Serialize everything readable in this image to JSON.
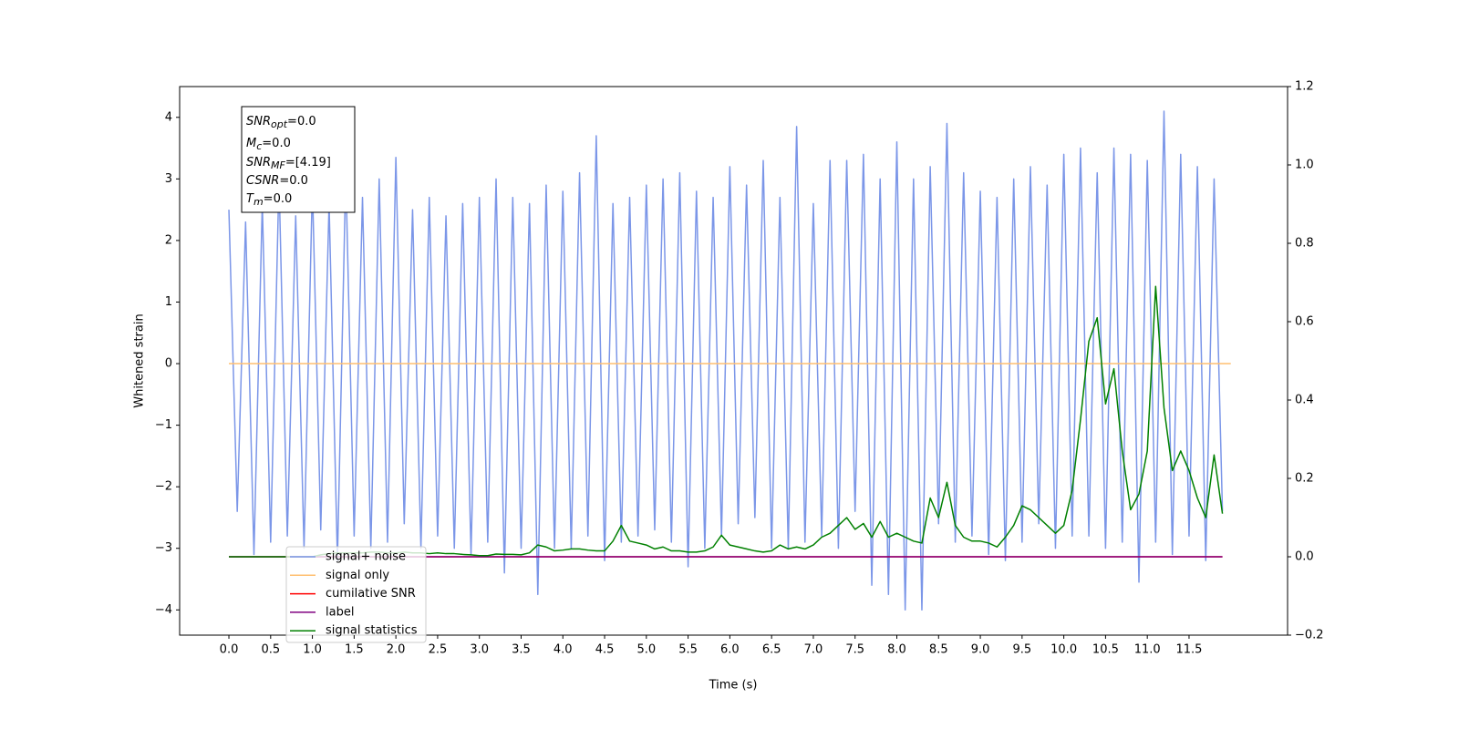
{
  "chart_data": {
    "type": "line",
    "xlabel": "Time (s)",
    "ylabel": "Whitened strain",
    "xlim": [
      -0.59,
      12.68
    ],
    "ylim": [
      -4.41,
      4.5
    ],
    "y2lim": [
      -0.2,
      1.2
    ],
    "xticks": [
      {
        "value": 0,
        "label": "0.0"
      },
      {
        "value": 0.5,
        "label": "0.5"
      },
      {
        "value": 1,
        "label": "1.0"
      },
      {
        "value": 1.5,
        "label": "1.5"
      },
      {
        "value": 2,
        "label": "2.0"
      },
      {
        "value": 2.5,
        "label": "2.5"
      },
      {
        "value": 3,
        "label": "3.0"
      },
      {
        "value": 3.5,
        "label": "3.5"
      },
      {
        "value": 4,
        "label": "4.0"
      },
      {
        "value": 4.5,
        "label": "4.5"
      },
      {
        "value": 5,
        "label": "5.0"
      },
      {
        "value": 5.5,
        "label": "5.5"
      },
      {
        "value": 6,
        "label": "6.0"
      },
      {
        "value": 6.5,
        "label": "6.5"
      },
      {
        "value": 7,
        "label": "7.0"
      },
      {
        "value": 7.5,
        "label": "7.5"
      },
      {
        "value": 8,
        "label": "8.0"
      },
      {
        "value": 8.5,
        "label": "8.5"
      },
      {
        "value": 9,
        "label": "9.0"
      },
      {
        "value": 9.5,
        "label": "9.5"
      },
      {
        "value": 10,
        "label": "10.0"
      },
      {
        "value": 10.5,
        "label": "10.5"
      },
      {
        "value": 11,
        "label": "11.0"
      },
      {
        "value": 11.5,
        "label": "11.5"
      }
    ],
    "yticks": [
      {
        "value": -4,
        "label": "−4"
      },
      {
        "value": -3,
        "label": "−3"
      },
      {
        "value": -2,
        "label": "−2"
      },
      {
        "value": -1,
        "label": "−1"
      },
      0,
      1,
      2,
      3,
      4
    ],
    "y2ticks": [
      {
        "value": -0.2,
        "label": "−0.2"
      },
      {
        "value": 0,
        "label": "0.0"
      },
      {
        "value": 0.2,
        "label": "0.2"
      },
      {
        "value": 0.4,
        "label": "0.4"
      },
      {
        "value": 0.6,
        "label": "0.6"
      },
      {
        "value": 0.8,
        "label": "0.8"
      },
      {
        "value": 1,
        "label": "1.0"
      },
      {
        "value": 1.2,
        "label": "1.2"
      }
    ],
    "legend": "lower left",
    "x": [
      0,
      0.1,
      0.2,
      0.3,
      0.4,
      0.5,
      0.6,
      0.7,
      0.8,
      0.9,
      1,
      1.1,
      1.2,
      1.3,
      1.4,
      1.5,
      1.6,
      1.7,
      1.8,
      1.9,
      2,
      2.1,
      2.2,
      2.3,
      2.4,
      2.5,
      2.6,
      2.7,
      2.8,
      2.9,
      3,
      3.1,
      3.2,
      3.3,
      3.4,
      3.5,
      3.6,
      3.7,
      3.8,
      3.9,
      4,
      4.1,
      4.2,
      4.3,
      4.4,
      4.5,
      4.6,
      4.7,
      4.8,
      4.9,
      5,
      5.1,
      5.2,
      5.3,
      5.4,
      5.5,
      5.6,
      5.7,
      5.8,
      5.9,
      6,
      6.1,
      6.2,
      6.3,
      6.4,
      6.5,
      6.6,
      6.7,
      6.8,
      6.9,
      7,
      7.1,
      7.2,
      7.3,
      7.4,
      7.5,
      7.6,
      7.7,
      7.8,
      7.9,
      8,
      8.1,
      8.2,
      8.3,
      8.4,
      8.5,
      8.6,
      8.7,
      8.8,
      8.9,
      9,
      9.1,
      9.2,
      9.3,
      9.4,
      9.5,
      9.6,
      9.7,
      9.8,
      9.9,
      10,
      10.1,
      10.2,
      10.3,
      10.4,
      10.5,
      10.6,
      10.7,
      10.8,
      10.9,
      11,
      11.1,
      11.2,
      11.3,
      11.4,
      11.5,
      11.6,
      11.7,
      11.8,
      11.9
    ],
    "series": [
      {
        "name": "signal+ noise",
        "color": "#7b96e8",
        "values": [
          2.5,
          -2.4,
          2.3,
          -3.1,
          2.6,
          -2.9,
          3.0,
          -2.8,
          2.4,
          -3.0,
          2.9,
          -2.7,
          2.6,
          -3.2,
          3.1,
          -2.8,
          2.7,
          -3.0,
          3.0,
          -2.9,
          3.35,
          -2.6,
          2.5,
          -3.0,
          2.7,
          -2.8,
          2.4,
          -3.0,
          2.6,
          -3.1,
          2.7,
          -2.9,
          3.0,
          -3.4,
          2.7,
          -3.0,
          2.6,
          -3.75,
          2.9,
          -3.0,
          2.8,
          -3.0,
          3.1,
          -2.8,
          3.7,
          -3.2,
          2.6,
          -2.9,
          2.7,
          -2.8,
          2.9,
          -2.7,
          3.0,
          -2.9,
          3.1,
          -3.3,
          2.8,
          -3.0,
          2.7,
          -2.8,
          3.2,
          -2.6,
          2.9,
          -2.5,
          3.3,
          -3.0,
          2.7,
          -3.0,
          3.85,
          -2.9,
          2.6,
          -2.8,
          3.3,
          -3.0,
          3.3,
          -2.4,
          3.4,
          -3.6,
          3.0,
          -3.75,
          3.6,
          -4.0,
          3.0,
          -4.0,
          3.2,
          -2.6,
          3.9,
          -2.9,
          3.1,
          -2.8,
          2.8,
          -3.1,
          2.7,
          -3.2,
          3.0,
          -2.9,
          3.2,
          -2.6,
          2.9,
          -3.0,
          3.4,
          -2.8,
          3.5,
          -2.8,
          3.1,
          -3.0,
          3.5,
          -2.9,
          3.4,
          -3.55,
          3.3,
          -2.9,
          4.1,
          -3.1,
          3.4,
          -2.8,
          3.2,
          -3.2,
          3.0,
          -2.4
        ]
      },
      {
        "name": "signal only",
        "color": "#ffbf70",
        "x": [
          0,
          12
        ],
        "values": [
          0,
          0
        ]
      },
      {
        "name": "cumilative SNR",
        "color": "#ff0000",
        "axis": "y2",
        "x": [
          0,
          11.9
        ],
        "values": [
          0,
          0
        ]
      },
      {
        "name": "label",
        "color": "#800080",
        "axis": "y2",
        "x": [
          0,
          11.9
        ],
        "values": [
          0,
          0
        ]
      },
      {
        "name": "signal statistics",
        "color": "#008000",
        "axis": "y2",
        "values": [
          0,
          0,
          0,
          0,
          0,
          0,
          0,
          0,
          0,
          0,
          0,
          0.005,
          0.008,
          0.01,
          0.01,
          0.01,
          0.01,
          0.012,
          0.012,
          0.01,
          0.01,
          0.012,
          0.01,
          0.01,
          0.008,
          0.01,
          0.008,
          0.008,
          0.006,
          0.005,
          0.003,
          0.003,
          0.007,
          0.006,
          0.006,
          0.005,
          0.01,
          0.03,
          0.025,
          0.015,
          0.017,
          0.02,
          0.02,
          0.017,
          0.015,
          0.015,
          0.04,
          0.08,
          0.04,
          0.035,
          0.03,
          0.02,
          0.025,
          0.015,
          0.015,
          0.012,
          0.012,
          0.015,
          0.025,
          0.055,
          0.03,
          0.025,
          0.02,
          0.015,
          0.012,
          0.015,
          0.03,
          0.02,
          0.025,
          0.02,
          0.03,
          0.05,
          0.06,
          0.08,
          0.1,
          0.07,
          0.085,
          0.05,
          0.09,
          0.05,
          0.06,
          0.05,
          0.04,
          0.035,
          0.15,
          0.1,
          0.19,
          0.08,
          0.05,
          0.04,
          0.04,
          0.035,
          0.025,
          0.05,
          0.08,
          0.13,
          0.12,
          0.1,
          0.08,
          0.06,
          0.08,
          0.17,
          0.35,
          0.55,
          0.61,
          0.39,
          0.48,
          0.27,
          0.12,
          0.16,
          0.27,
          0.69,
          0.38,
          0.22,
          0.27,
          0.22,
          0.15,
          0.1,
          0.26,
          0.11
        ]
      }
    ],
    "annotations": [
      {
        "main": "SNR",
        "sub": "opt",
        "rest": "=0.0"
      },
      {
        "main": "M",
        "sub": "c",
        "rest": "=0.0"
      },
      {
        "main": "SNR",
        "sub": "MF",
        "rest": "=[4.19]"
      },
      {
        "main": "CSNR",
        "rest": "=0.0"
      },
      {
        "main": "T",
        "sub": "m",
        "rest": "=0.0"
      }
    ]
  }
}
